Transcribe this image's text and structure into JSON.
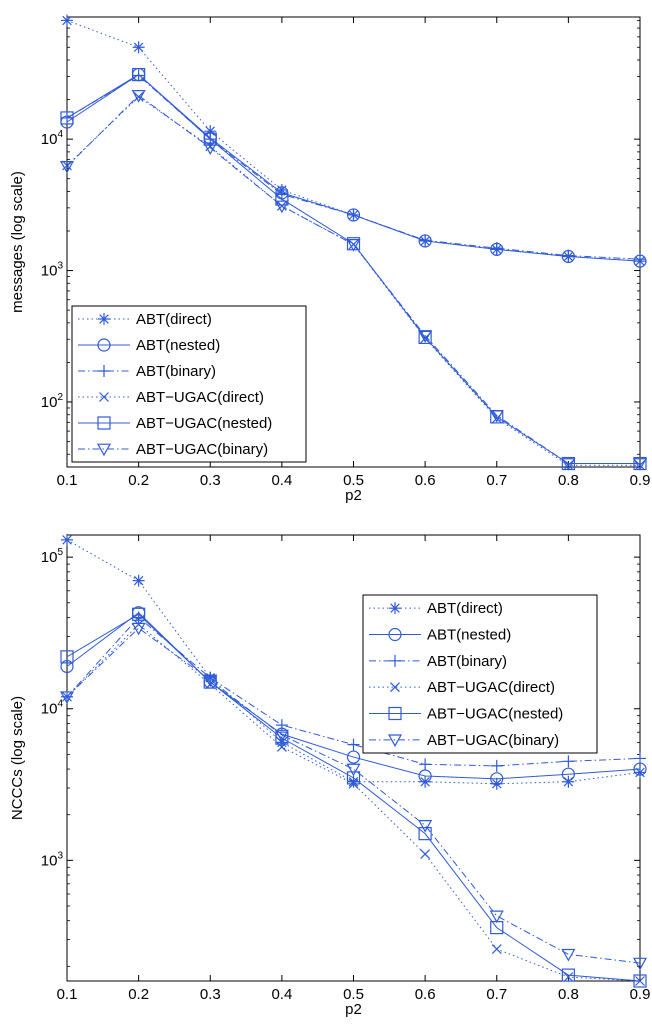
{
  "colors": {
    "series": "#2f5bd8",
    "axis": "#000000",
    "background": "#ffffff"
  },
  "chart_data": [
    {
      "type": "line",
      "title": "",
      "xlabel": "p2",
      "ylabel": "messages (log scale)",
      "yscale": "log",
      "xlim": [
        0.1,
        0.9
      ],
      "ylim": [
        32,
        85000
      ],
      "xticks": [
        "0.1",
        "0.2",
        "0.3",
        "0.4",
        "0.5",
        "0.6",
        "0.7",
        "0.8",
        "0.9"
      ],
      "yticks": [
        {
          "value": 100,
          "base": "10",
          "exp": "2"
        },
        {
          "value": 1000,
          "base": "10",
          "exp": "3"
        },
        {
          "value": 10000,
          "base": "10",
          "exp": "4"
        }
      ],
      "legend_position": "lower-left",
      "x": [
        0.1,
        0.2,
        0.3,
        0.4,
        0.5,
        0.6,
        0.7,
        0.8,
        0.9
      ],
      "series": [
        {
          "name": "ABT(direct)",
          "marker": "star",
          "dash": "dotted",
          "values": [
            80000,
            50000,
            11500,
            4100,
            2650,
            1680,
            1450,
            1280,
            1180
          ]
        },
        {
          "name": "ABT(nested)",
          "marker": "circle",
          "dash": "solid",
          "values": [
            13500,
            31000,
            10200,
            3900,
            2650,
            1680,
            1450,
            1280,
            1180
          ]
        },
        {
          "name": "ABT(binary)",
          "marker": "plus",
          "dash": "dashdot",
          "values": [
            14500,
            30500,
            10000,
            3800,
            2650,
            1700,
            1480,
            1300,
            1220
          ]
        },
        {
          "name": "ABT−UGAC(direct)",
          "marker": "x",
          "dash": "dotted",
          "values": [
            6300,
            21000,
            8800,
            3100,
            1580,
            305,
            75,
            33,
            33
          ]
        },
        {
          "name": "ABT−UGAC(nested)",
          "marker": "square",
          "dash": "solid",
          "values": [
            14500,
            31000,
            10000,
            3500,
            1600,
            310,
            77,
            34,
            34
          ]
        },
        {
          "name": "ABT−UGAC(binary)",
          "marker": "triangle-down",
          "dash": "dashdot",
          "values": [
            6200,
            21500,
            8600,
            3100,
            1580,
            320,
            79,
            34,
            34
          ]
        }
      ]
    },
    {
      "type": "line",
      "title": "",
      "xlabel": "p2",
      "ylabel": "NCCCs (log scale)",
      "yscale": "log",
      "xlim": [
        0.1,
        0.9
      ],
      "ylim": [
        160,
        140000
      ],
      "xticks": [
        "0.1",
        "0.2",
        "0.3",
        "0.4",
        "0.5",
        "0.6",
        "0.7",
        "0.8",
        "0.9"
      ],
      "yticks": [
        {
          "value": 1000,
          "base": "10",
          "exp": "3"
        },
        {
          "value": 10000,
          "base": "10",
          "exp": "4"
        },
        {
          "value": 100000,
          "base": "10",
          "exp": "5"
        }
      ],
      "legend_position": "upper-right",
      "x": [
        0.1,
        0.2,
        0.3,
        0.4,
        0.5,
        0.6,
        0.7,
        0.8,
        0.9
      ],
      "series": [
        {
          "name": "ABT(direct)",
          "marker": "star",
          "dash": "dotted",
          "values": [
            130000,
            70000,
            16000,
            6000,
            3300,
            3300,
            3200,
            3300,
            3800
          ]
        },
        {
          "name": "ABT(nested)",
          "marker": "circle",
          "dash": "solid",
          "values": [
            19000,
            43000,
            15000,
            6800,
            4800,
            3600,
            3450,
            3700,
            4000
          ]
        },
        {
          "name": "ABT(binary)",
          "marker": "plus",
          "dash": "dashdot",
          "values": [
            12000,
            40000,
            16000,
            7800,
            5800,
            4300,
            4200,
            4500,
            4700
          ]
        },
        {
          "name": "ABT−UGAC(direct)",
          "marker": "x",
          "dash": "dotted",
          "values": [
            12000,
            36000,
            14500,
            5600,
            3200,
            1100,
            260,
            170,
            160
          ]
        },
        {
          "name": "ABT−UGAC(nested)",
          "marker": "square",
          "dash": "solid",
          "values": [
            22000,
            42000,
            15000,
            6400,
            3500,
            1500,
            360,
            175,
            160
          ]
        },
        {
          "name": "ABT−UGAC(binary)",
          "marker": "triangle-down",
          "dash": "dashdot",
          "values": [
            12000,
            34000,
            15500,
            6700,
            4000,
            1700,
            430,
            240,
            210
          ]
        }
      ]
    }
  ]
}
